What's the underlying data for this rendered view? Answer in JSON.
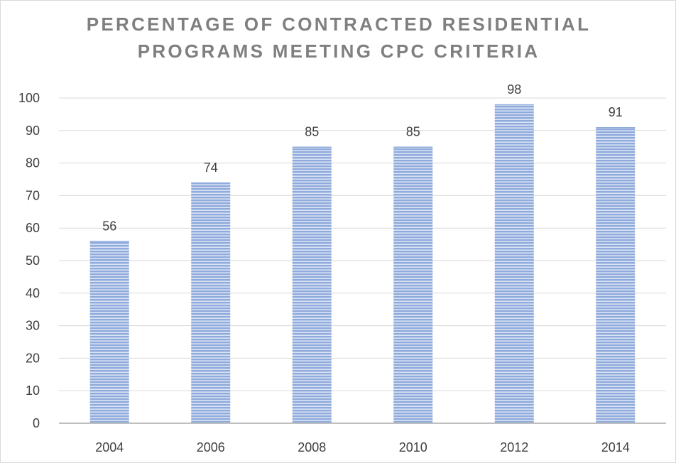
{
  "chart_data": {
    "type": "bar",
    "title_lines": [
      "PERCENTAGE OF CONTRACTED RESIDENTIAL",
      "PROGRAMS MEETING CPC CRITERIA"
    ],
    "categories": [
      "2004",
      "2006",
      "2008",
      "2010",
      "2012",
      "2014"
    ],
    "values": [
      56,
      74,
      85,
      85,
      98,
      91
    ],
    "data_labels": [
      "56",
      "74",
      "85",
      "85",
      "98",
      "91"
    ],
    "xlabel": "",
    "ylabel": "",
    "ylim": [
      0,
      100
    ],
    "yticks": [
      0,
      10,
      20,
      30,
      40,
      50,
      60,
      70,
      80,
      90,
      100
    ],
    "grid": true,
    "legend": "none",
    "colors": {
      "bar": "#8faadc",
      "bar_stripe": "#dae3f3",
      "grid": "#d9d9d9",
      "axis": "#bfbfbf",
      "text": "#404040",
      "title": "#7f7f7f"
    }
  }
}
